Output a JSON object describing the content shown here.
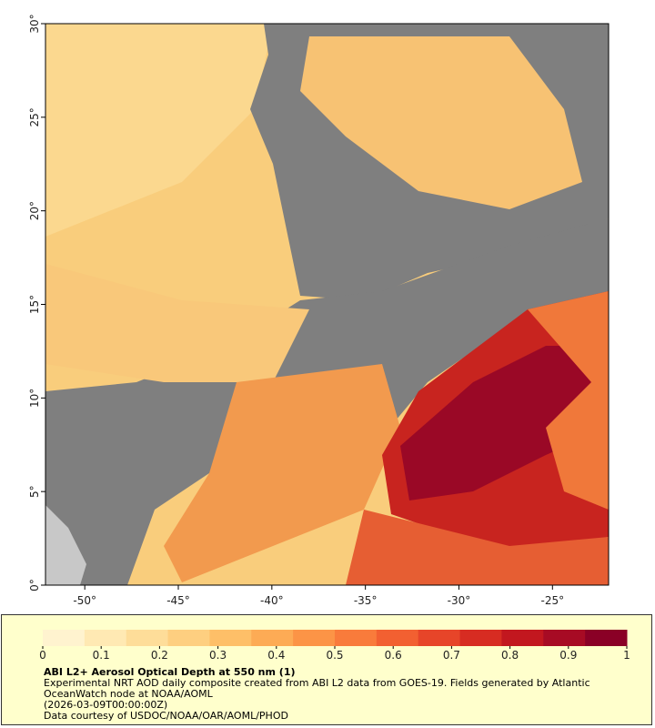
{
  "map": {
    "xlim": [
      -52.1,
      -22
    ],
    "ylim": [
      0,
      30
    ],
    "xticks": [
      {
        "value": -50,
        "label": "-50°"
      },
      {
        "value": -45,
        "label": "-45°"
      },
      {
        "value": -40,
        "label": "-40°"
      },
      {
        "value": -35,
        "label": "-35°"
      },
      {
        "value": -30,
        "label": "-30°"
      },
      {
        "value": -25,
        "label": "-25°"
      }
    ],
    "yticks": [
      {
        "value": 0,
        "label": "0°"
      },
      {
        "value": 5,
        "label": "5°"
      },
      {
        "value": 10,
        "label": "10°"
      },
      {
        "value": 15,
        "label": "15°"
      },
      {
        "value": 20,
        "label": "20°"
      },
      {
        "value": 25,
        "label": "25°"
      },
      {
        "value": 30,
        "label": "30°"
      }
    ]
  },
  "colorbar": {
    "lim": [
      0,
      1
    ],
    "ticks": [
      0,
      0.1,
      0.2,
      0.3,
      0.4,
      0.5,
      0.6,
      0.7,
      0.8,
      0.9,
      1
    ],
    "colors": [
      "#fff3cf",
      "#ffe9b3",
      "#fedd99",
      "#fecf80",
      "#febf68",
      "#fdab55",
      "#fc9446",
      "#f97b3b",
      "#f26031",
      "#e74529",
      "#d72c22",
      "#c2171f",
      "#a70b24",
      "#8a0026"
    ]
  },
  "title": "ABI L2+ Aerosol Optical Depth at 550 nm (1)",
  "description": [
    "Experimental NRT AOD daily composite created from ABI L2 data from GOES-19. Fields generated by Atlantic OceanWatch node at NOAA/AOML",
    "(2026-03-09T00:00:00Z)",
    "Data courtesy of USDOC/NOAA/OAR/AOML/PHOD"
  ]
}
